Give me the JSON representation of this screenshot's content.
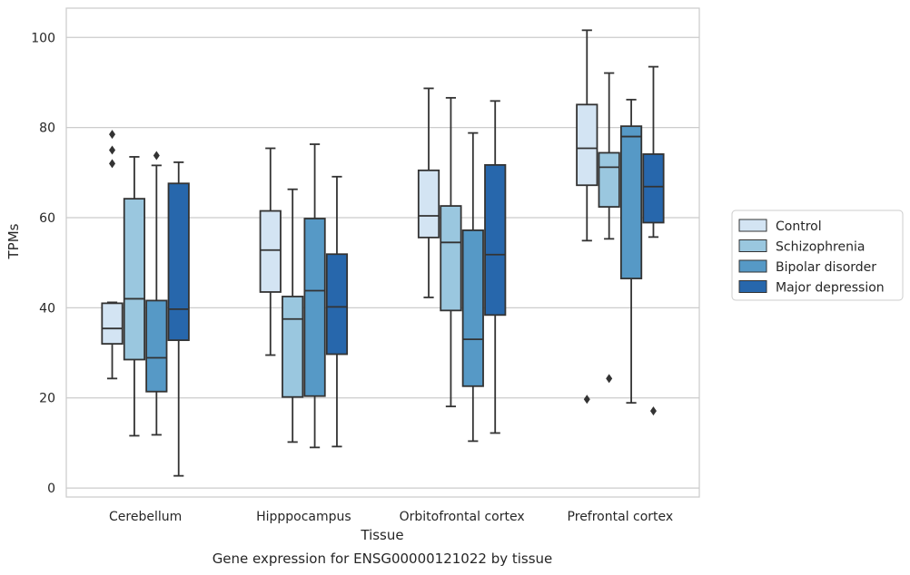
{
  "chart_data": {
    "type": "boxplot",
    "title": "",
    "caption": "Gene expression for ENSG00000121022 by tissue",
    "xlabel": "Tissue",
    "ylabel": "TPMs",
    "ylim": [
      -2,
      106.5
    ],
    "yticks": [
      0,
      20,
      40,
      60,
      80,
      100
    ],
    "grid": "horizontal",
    "legend_placement": "right",
    "categories": [
      "Cerebellum",
      "Hipppocampus",
      "Orbitofrontal cortex",
      "Prefrontal cortex"
    ],
    "series": [
      {
        "name": "Control",
        "color": "#d3e4f3",
        "boxes": [
          {
            "whisker_low": 24.3,
            "q1": 32.0,
            "median": 35.4,
            "q3": 41.0,
            "whisker_high": 41.2,
            "outliers": [
              72.0,
              75.0,
              78.5
            ]
          },
          {
            "whisker_low": 29.5,
            "q1": 43.5,
            "median": 52.8,
            "q3": 61.5,
            "whisker_high": 75.4,
            "outliers": []
          },
          {
            "whisker_low": 42.3,
            "q1": 55.6,
            "median": 60.4,
            "q3": 70.5,
            "whisker_high": 88.7,
            "outliers": []
          },
          {
            "whisker_low": 54.9,
            "q1": 67.2,
            "median": 75.4,
            "q3": 85.1,
            "whisker_high": 101.6,
            "outliers": [
              19.7
            ]
          }
        ]
      },
      {
        "name": "Schizophrenia",
        "color": "#9ac7df",
        "boxes": [
          {
            "whisker_low": 11.6,
            "q1": 28.5,
            "median": 42.0,
            "q3": 64.2,
            "whisker_high": 73.5,
            "outliers": []
          },
          {
            "whisker_low": 10.2,
            "q1": 20.2,
            "median": 37.5,
            "q3": 42.5,
            "whisker_high": 66.3,
            "outliers": []
          },
          {
            "whisker_low": 18.1,
            "q1": 39.4,
            "median": 54.5,
            "q3": 62.6,
            "whisker_high": 86.6,
            "outliers": []
          },
          {
            "whisker_low": 55.3,
            "q1": 62.4,
            "median": 71.2,
            "q3": 74.4,
            "whisker_high": 92.1,
            "outliers": [
              24.3
            ]
          }
        ]
      },
      {
        "name": "Bipolar disorder",
        "color": "#5699c6",
        "boxes": [
          {
            "whisker_low": 11.8,
            "q1": 21.4,
            "median": 28.9,
            "q3": 41.6,
            "whisker_high": 71.6,
            "outliers": [
              73.8
            ]
          },
          {
            "whisker_low": 9.0,
            "q1": 20.4,
            "median": 43.8,
            "q3": 59.8,
            "whisker_high": 76.3,
            "outliers": []
          },
          {
            "whisker_low": 10.4,
            "q1": 22.6,
            "median": 33.0,
            "q3": 57.2,
            "whisker_high": 78.8,
            "outliers": []
          },
          {
            "whisker_low": 18.9,
            "q1": 46.5,
            "median": 78.0,
            "q3": 80.3,
            "whisker_high": 86.2,
            "outliers": []
          }
        ]
      },
      {
        "name": "Major depression",
        "color": "#2767ac",
        "boxes": [
          {
            "whisker_low": 2.7,
            "q1": 32.8,
            "median": 39.7,
            "q3": 67.6,
            "whisker_high": 72.3,
            "outliers": []
          },
          {
            "whisker_low": 9.2,
            "q1": 29.7,
            "median": 40.2,
            "q3": 51.9,
            "whisker_high": 69.1,
            "outliers": []
          },
          {
            "whisker_low": 12.2,
            "q1": 38.4,
            "median": 51.8,
            "q3": 71.7,
            "whisker_high": 85.9,
            "outliers": []
          },
          {
            "whisker_low": 55.7,
            "q1": 58.9,
            "median": 66.9,
            "q3": 74.1,
            "whisker_high": 93.5,
            "outliers": [
              17.1
            ]
          }
        ]
      }
    ]
  }
}
